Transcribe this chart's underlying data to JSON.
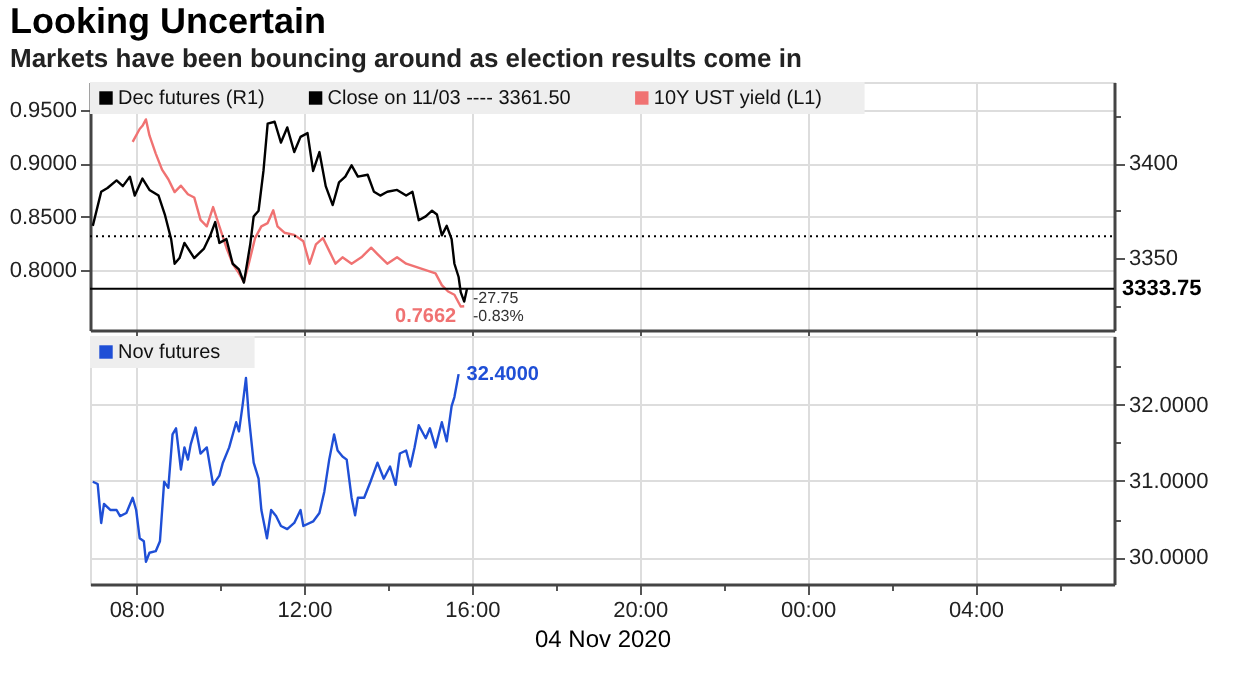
{
  "chart_data": [
    {
      "type": "line",
      "title": "Looking Uncertain",
      "subtitle": "Markets have been bouncing around as election results come in",
      "xlim": [
        "2020-11-04T06:54",
        "2020-11-05T07:18"
      ],
      "xticks": [
        {
          "value": "2020-11-04T08:00",
          "label": null
        },
        {
          "value": "2020-11-04T12:00",
          "label": null
        },
        {
          "value": "2020-11-04T16:00",
          "label": null
        },
        {
          "value": "2020-11-04T20:00",
          "label": null
        },
        {
          "value": "2020-11-05T00:00",
          "label": null
        },
        {
          "value": "2020-11-05T04:00",
          "label": null
        }
      ],
      "ylim": [
        0.744,
        0.976
      ],
      "yticks": [
        {
          "value": 0.8,
          "label": "0.8000"
        },
        {
          "value": 0.85,
          "label": "0.8500"
        },
        {
          "value": 0.9,
          "label": "0.9000"
        },
        {
          "value": 0.95,
          "label": "0.9500"
        }
      ],
      "y2lim": [
        3312,
        3443
      ],
      "y2ticks": [
        {
          "value": 3325,
          "label": null
        },
        3350,
        {
          "value": 3375,
          "label": null
        },
        3400,
        {
          "value": 3425,
          "label": null
        }
      ],
      "tick_labels": "y",
      "grid": true,
      "legend": "top left",
      "series": [
        {
          "name": "Dec futures (R1)",
          "color": "#000000",
          "axis": "y2",
          "x": [
            "2020-11-04T06:58",
            "2020-11-04T07:10",
            "2020-11-04T07:19",
            "2020-11-04T07:32",
            "2020-11-04T07:41",
            "2020-11-04T07:51",
            "2020-11-04T07:58",
            "2020-11-04T08:09",
            "2020-11-04T08:19",
            "2020-11-04T08:32",
            "2020-11-04T08:41",
            "2020-11-04T08:50",
            "2020-11-04T08:55",
            "2020-11-04T09:02",
            "2020-11-04T09:09",
            "2020-11-04T09:23",
            "2020-11-04T09:37",
            "2020-11-04T09:46",
            "2020-11-04T09:53",
            "2020-11-04T09:59",
            "2020-11-04T10:09",
            "2020-11-04T10:18",
            "2020-11-04T10:27",
            "2020-11-04T10:34",
            "2020-11-04T10:43",
            "2020-11-04T10:48",
            "2020-11-04T10:55",
            "2020-11-04T11:02",
            "2020-11-04T11:08",
            "2020-11-04T11:18",
            "2020-11-04T11:27",
            "2020-11-04T11:36",
            "2020-11-04T11:46",
            "2020-11-04T11:55",
            "2020-11-04T12:05",
            "2020-11-04T12:13",
            "2020-11-04T12:22",
            "2020-11-04T12:31",
            "2020-11-04T12:41",
            "2020-11-04T12:50",
            "2020-11-04T12:59",
            "2020-11-04T13:08",
            "2020-11-04T13:17",
            "2020-11-04T13:31",
            "2020-11-04T13:40",
            "2020-11-04T13:49",
            "2020-11-04T13:59",
            "2020-11-04T14:13",
            "2020-11-04T14:26",
            "2020-11-04T14:35",
            "2020-11-04T14:44",
            "2020-11-04T14:54",
            "2020-11-04T15:03",
            "2020-11-04T15:10",
            "2020-11-04T15:17",
            "2020-11-04T15:24",
            "2020-11-04T15:31",
            "2020-11-04T15:35",
            "2020-11-04T15:41",
            "2020-11-04T15:44",
            "2020-11-04T15:49",
            "2020-11-04T15:53"
          ],
          "values": [
            3367,
            3385,
            3387,
            3391,
            3388,
            3393,
            3383,
            3392,
            3386,
            3383,
            3373,
            3360,
            3347,
            3350,
            3358,
            3350,
            3355,
            3362,
            3369,
            3358,
            3360,
            3347,
            3344,
            3337,
            3357,
            3372,
            3375,
            3396,
            3421,
            3422,
            3411,
            3419,
            3406,
            3414,
            3416,
            3396,
            3406,
            3388,
            3378,
            3390,
            3393,
            3399,
            3393,
            3394,
            3385,
            3383,
            3385,
            3386,
            3383,
            3385,
            3370,
            3372,
            3375,
            3373,
            3362,
            3367,
            3360,
            3347,
            3340,
            3332,
            3327,
            3333.75
          ]
        },
        {
          "name": "10Y UST yield (L1)",
          "color": "#f07272",
          "x": [
            "2020-11-04T07:55",
            "2020-11-04T08:05",
            "2020-11-04T08:09",
            "2020-11-04T08:14",
            "2020-11-04T08:19",
            "2020-11-04T08:28",
            "2020-11-04T08:37",
            "2020-11-04T08:46",
            "2020-11-04T08:55",
            "2020-11-04T09:04",
            "2020-11-04T09:14",
            "2020-11-04T09:23",
            "2020-11-04T09:32",
            "2020-11-04T09:41",
            "2020-11-04T09:50",
            "2020-11-04T09:59",
            "2020-11-04T10:09",
            "2020-11-04T10:18",
            "2020-11-04T10:27",
            "2020-11-04T10:34",
            "2020-11-04T10:41",
            "2020-11-04T10:50",
            "2020-11-04T10:59",
            "2020-11-04T11:08",
            "2020-11-04T11:16",
            "2020-11-04T11:22",
            "2020-11-04T11:32",
            "2020-11-04T11:46",
            "2020-11-04T11:59",
            "2020-11-04T12:08",
            "2020-11-04T12:17",
            "2020-11-04T12:27",
            "2020-11-04T12:36",
            "2020-11-04T12:45",
            "2020-11-04T12:55",
            "2020-11-04T13:08",
            "2020-11-04T13:22",
            "2020-11-04T13:36",
            "2020-11-04T13:45",
            "2020-11-04T13:59",
            "2020-11-04T14:13",
            "2020-11-04T14:26",
            "2020-11-04T14:40",
            "2020-11-04T14:54",
            "2020-11-04T15:08",
            "2020-11-04T15:17",
            "2020-11-04T15:26",
            "2020-11-04T15:35",
            "2020-11-04T15:44",
            "2020-11-04T15:49"
          ],
          "values": [
            0.92,
            0.932,
            0.935,
            0.941,
            0.926,
            0.909,
            0.894,
            0.885,
            0.873,
            0.879,
            0.871,
            0.868,
            0.847,
            0.841,
            0.859,
            0.841,
            0.821,
            0.806,
            0.797,
            0.789,
            0.806,
            0.83,
            0.841,
            0.844,
            0.856,
            0.841,
            0.835,
            0.833,
            0.827,
            0.806,
            0.824,
            0.83,
            0.818,
            0.806,
            0.812,
            0.806,
            0.812,
            0.821,
            0.815,
            0.806,
            0.812,
            0.806,
            0.803,
            0.8,
            0.797,
            0.786,
            0.78,
            0.777,
            0.766,
            0.7662
          ],
          "value_labels": [
            null,
            null,
            null,
            null,
            null,
            null,
            null,
            null,
            null,
            null,
            null,
            null,
            null,
            null,
            null,
            null,
            null,
            null,
            null,
            null,
            null,
            null,
            null,
            null,
            null,
            null,
            null,
            null,
            null,
            null,
            null,
            null,
            null,
            null,
            null,
            null,
            null,
            null,
            null,
            null,
            null,
            null,
            null,
            null,
            null,
            null,
            null,
            null,
            null,
            "0.7662"
          ]
        }
      ],
      "ref_lines": [
        {
          "axis": "y2",
          "value": 3361.5,
          "label": "Close on 11/03 ---- 3361.50",
          "color": "#000000",
          "line_style": "dotted"
        },
        {
          "axis": "y2",
          "value": 3333.75,
          "label": "3333.75",
          "color": "#000000"
        }
      ],
      "annotations": [
        "-27.75",
        "-0.83%"
      ]
    },
    {
      "type": "line",
      "xlabel": "04 Nov 2020",
      "xlim": [
        "2020-11-04T06:54",
        "2020-11-05T07:18"
      ],
      "xticks": [
        {
          "value": "2020-11-04T08:00",
          "label": "08:00"
        },
        {
          "value": "2020-11-04T10:00",
          "label": null
        },
        {
          "value": "2020-11-04T12:00",
          "label": "12:00"
        },
        {
          "value": "2020-11-04T14:00",
          "label": null
        },
        {
          "value": "2020-11-04T16:00",
          "label": "16:00"
        },
        {
          "value": "2020-11-04T18:00",
          "label": null
        },
        {
          "value": "2020-11-04T20:00",
          "label": "20:00"
        },
        {
          "value": "2020-11-04T22:00",
          "label": null
        },
        {
          "value": "2020-11-05T00:00",
          "label": "00:00"
        },
        {
          "value": "2020-11-05T02:00",
          "label": null
        },
        {
          "value": "2020-11-05T04:00",
          "label": "04:00"
        },
        {
          "value": "2020-11-05T06:00",
          "label": null
        }
      ],
      "y2lim": [
        29.65,
        32.9
      ],
      "y2ticks": [
        {
          "value": 30,
          "label": "30.0000"
        },
        {
          "value": 30.5,
          "label": null
        },
        {
          "value": 31,
          "label": "31.0000"
        },
        {
          "value": 31.5,
          "label": null
        },
        {
          "value": 32,
          "label": "32.0000"
        },
        {
          "value": 32.5,
          "label": null
        }
      ],
      "grid": true,
      "legend": "top left",
      "series": [
        {
          "name": "Nov futures",
          "color": "#1f4fd6",
          "axis": "y2",
          "x": [
            "2020-11-04T06:58",
            "2020-11-04T07:05",
            "2020-11-04T07:10",
            "2020-11-04T07:14",
            "2020-11-04T07:23",
            "2020-11-04T07:32",
            "2020-11-04T07:37",
            "2020-11-04T07:46",
            "2020-11-04T07:55",
            "2020-11-04T08:00",
            "2020-11-04T08:05",
            "2020-11-04T08:11",
            "2020-11-04T08:14",
            "2020-11-04T08:19",
            "2020-11-04T08:28",
            "2020-11-04T08:34",
            "2020-11-04T08:40",
            "2020-11-04T08:46",
            "2020-11-04T08:52",
            "2020-11-04T08:57",
            "2020-11-04T09:04",
            "2020-11-04T09:09",
            "2020-11-04T09:14",
            "2020-11-04T09:18",
            "2020-11-04T09:25",
            "2020-11-04T09:32",
            "2020-11-04T09:41",
            "2020-11-04T09:50",
            "2020-11-04T09:59",
            "2020-11-04T10:04",
            "2020-11-04T10:13",
            "2020-11-04T10:23",
            "2020-11-04T10:27",
            "2020-11-04T10:32",
            "2020-11-04T10:37",
            "2020-11-04T10:41",
            "2020-11-04T10:48",
            "2020-11-04T10:55",
            "2020-11-04T10:59",
            "2020-11-04T11:07",
            "2020-11-04T11:13",
            "2020-11-04T11:20",
            "2020-11-04T11:27",
            "2020-11-04T11:36",
            "2020-11-04T11:46",
            "2020-11-04T11:55",
            "2020-11-04T11:59",
            "2020-11-04T12:13",
            "2020-11-04T12:22",
            "2020-11-04T12:29",
            "2020-11-04T12:36",
            "2020-11-04T12:43",
            "2020-11-04T12:48",
            "2020-11-04T12:55",
            "2020-11-04T13:01",
            "2020-11-04T13:08",
            "2020-11-04T13:13",
            "2020-11-04T13:17",
            "2020-11-04T13:26",
            "2020-11-04T13:35",
            "2020-11-04T13:45",
            "2020-11-04T13:54",
            "2020-11-04T14:03",
            "2020-11-04T14:11",
            "2020-11-04T14:17",
            "2020-11-04T14:26",
            "2020-11-04T14:32",
            "2020-11-04T14:38",
            "2020-11-04T14:44",
            "2020-11-04T14:54",
            "2020-11-04T15:00",
            "2020-11-04T15:08",
            "2020-11-04T15:17",
            "2020-11-04T15:24",
            "2020-11-04T15:31",
            "2020-11-04T15:35",
            "2020-11-04T15:41"
          ],
          "values": [
            30.99,
            30.96,
            30.45,
            30.7,
            30.62,
            30.62,
            30.54,
            30.58,
            30.78,
            30.62,
            30.25,
            30.21,
            29.94,
            30.06,
            30.08,
            30.21,
            30.99,
            30.91,
            31.61,
            31.69,
            31.15,
            31.44,
            31.28,
            31.48,
            31.7,
            31.36,
            31.44,
            30.95,
            31.07,
            31.24,
            31.44,
            31.77,
            31.65,
            31.98,
            32.35,
            31.85,
            31.24,
            31.03,
            30.62,
            30.25,
            30.62,
            30.54,
            30.41,
            30.37,
            30.45,
            30.62,
            30.41,
            30.47,
            30.58,
            30.86,
            31.28,
            31.61,
            31.4,
            31.32,
            31.28,
            30.78,
            30.55,
            30.78,
            30.78,
            30.99,
            31.24,
            31.03,
            31.19,
            30.95,
            31.36,
            31.4,
            31.19,
            31.44,
            31.73,
            31.56,
            31.69,
            31.44,
            31.77,
            31.52,
            31.98,
            32.1,
            32.4
          ],
          "value_labels": [
            null,
            null,
            null,
            null,
            null,
            null,
            null,
            null,
            null,
            null,
            null,
            null,
            null,
            null,
            null,
            null,
            null,
            null,
            null,
            null,
            null,
            null,
            null,
            null,
            null,
            null,
            null,
            null,
            null,
            null,
            null,
            null,
            null,
            null,
            null,
            null,
            null,
            null,
            null,
            null,
            null,
            null,
            null,
            null,
            null,
            null,
            null,
            null,
            null,
            null,
            null,
            null,
            null,
            null,
            null,
            null,
            null,
            null,
            null,
            null,
            null,
            null,
            null,
            null,
            null,
            null,
            null,
            null,
            null,
            null,
            null,
            null,
            null,
            null,
            null,
            null,
            "32.4000"
          ]
        }
      ]
    }
  ]
}
